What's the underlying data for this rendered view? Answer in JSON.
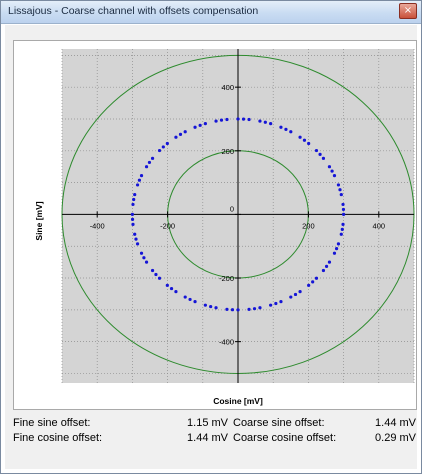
{
  "window": {
    "title": "Lissajous - Coarse channel with offsets compensation",
    "close_glyph": "×"
  },
  "chart_data": {
    "type": "scatter",
    "title": "",
    "xlabel": "Cosine [mV]",
    "ylabel": "Sine [mV]",
    "xlim": [
      -500,
      500
    ],
    "ylim": [
      -530,
      520
    ],
    "x_ticks": [
      -400,
      -200,
      0,
      200,
      400
    ],
    "y_ticks": [
      400,
      200,
      0,
      -200,
      -400
    ],
    "x_tick_labels": [
      "-400",
      "-200",
      "0",
      "200",
      "400"
    ],
    "y_tick_labels": [
      "400",
      "200",
      "0",
      "-200",
      "-400"
    ],
    "grid": true,
    "reference_circles": [
      {
        "name": "",
        "radius": 500,
        "color": "#2e8b2e"
      },
      {
        "name": "",
        "radius": 200,
        "color": "#2e8b2e"
      }
    ],
    "series": [
      {
        "name": "",
        "kind": "points",
        "radius": 300,
        "color": "#1515d6",
        "center": [
          0,
          0
        ],
        "point_count": 120
      }
    ]
  },
  "offsets": {
    "fine_sine_label": "Fine sine offset:",
    "fine_sine_value": "1.15 mV",
    "fine_cosine_label": "Fine cosine offset:",
    "fine_cosine_value": "1.44 mV",
    "coarse_sine_label": "Coarse sine offset:",
    "coarse_sine_value": "1.44 mV",
    "coarse_cosine_label": "Coarse cosine offset:",
    "coarse_cosine_value": "0.29 mV"
  }
}
